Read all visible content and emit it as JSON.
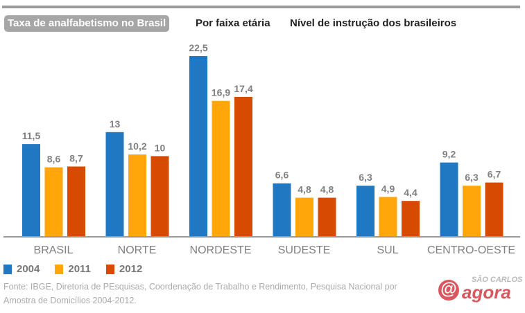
{
  "tabs": [
    {
      "label": "Taxa de analfabetismo no Brasil",
      "active": true
    },
    {
      "label": "Por faixa etária"
    },
    {
      "label": "Nível de instrução dos brasileiros"
    }
  ],
  "chart_data": {
    "type": "bar",
    "categories": [
      "BRASIL",
      "NORTE",
      "NORDESTE",
      "SUDESTE",
      "SUL",
      "CENTRO-OESTE"
    ],
    "series": [
      {
        "name": "2004",
        "color": "#1f78c1",
        "values": [
          11.5,
          13,
          22.5,
          6.6,
          6.3,
          9.2
        ],
        "labels": [
          "11,5",
          "13",
          "22,5",
          "6,6",
          "6,3",
          "9,2"
        ]
      },
      {
        "name": "2011",
        "color": "#ffa60a",
        "values": [
          8.6,
          10.2,
          16.9,
          4.8,
          4.9,
          6.3
        ],
        "labels": [
          "8,6",
          "10,2",
          "16,9",
          "4,8",
          "4,9",
          "6,3"
        ]
      },
      {
        "name": "2012",
        "color": "#d64a02",
        "values": [
          8.7,
          10,
          17.4,
          4.8,
          4.4,
          6.7
        ],
        "labels": [
          "8,7",
          "10",
          "17,4",
          "4,8",
          "4,4",
          "6,7"
        ]
      }
    ],
    "ylim": [
      0,
      22.5
    ],
    "grid": false,
    "legend": "bottom-left"
  },
  "footer": {
    "source": "Fonte: IBGE, Diretoria de PEsquisas, Coordenação de Trabalho e Rendimento, Pesquisa Nacional por Amostra de Domicílios 2004-2012."
  },
  "logo": {
    "top": "SÃO CARLOS",
    "word": "agora"
  }
}
